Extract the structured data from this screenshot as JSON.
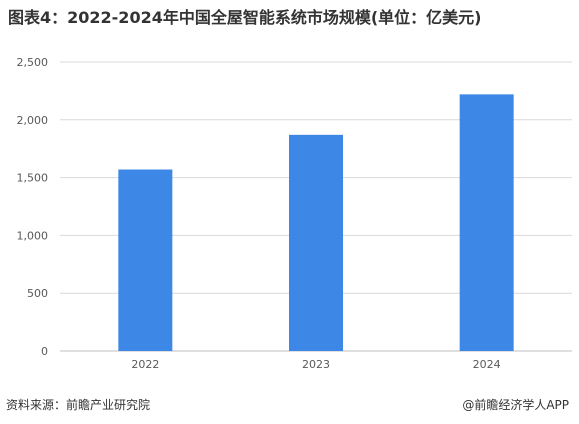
{
  "title": "图表4：2022-2024年中国全屋智能系统市场规模(单位：亿美元)",
  "chart_data": {
    "type": "bar",
    "title": "图表4：2022-2024年中国全屋智能系统市场规模(单位：亿美元)",
    "categories": [
      "2022",
      "2023",
      "2024"
    ],
    "values": [
      1570,
      1870,
      2220
    ],
    "xlabel": "",
    "ylabel": "",
    "ylim": [
      0,
      2500
    ],
    "yticks": [
      0,
      500,
      1000,
      1500,
      2000,
      2500
    ],
    "ytick_labels": [
      "0",
      "500",
      "1,000",
      "1,500",
      "2,000",
      "2,500"
    ],
    "grid": true,
    "bar_color": "#3D88E6",
    "legend": "none"
  },
  "footer": {
    "source": "资料来源：前瞻产业研究院",
    "brand": "@前瞻经济学人APP"
  }
}
